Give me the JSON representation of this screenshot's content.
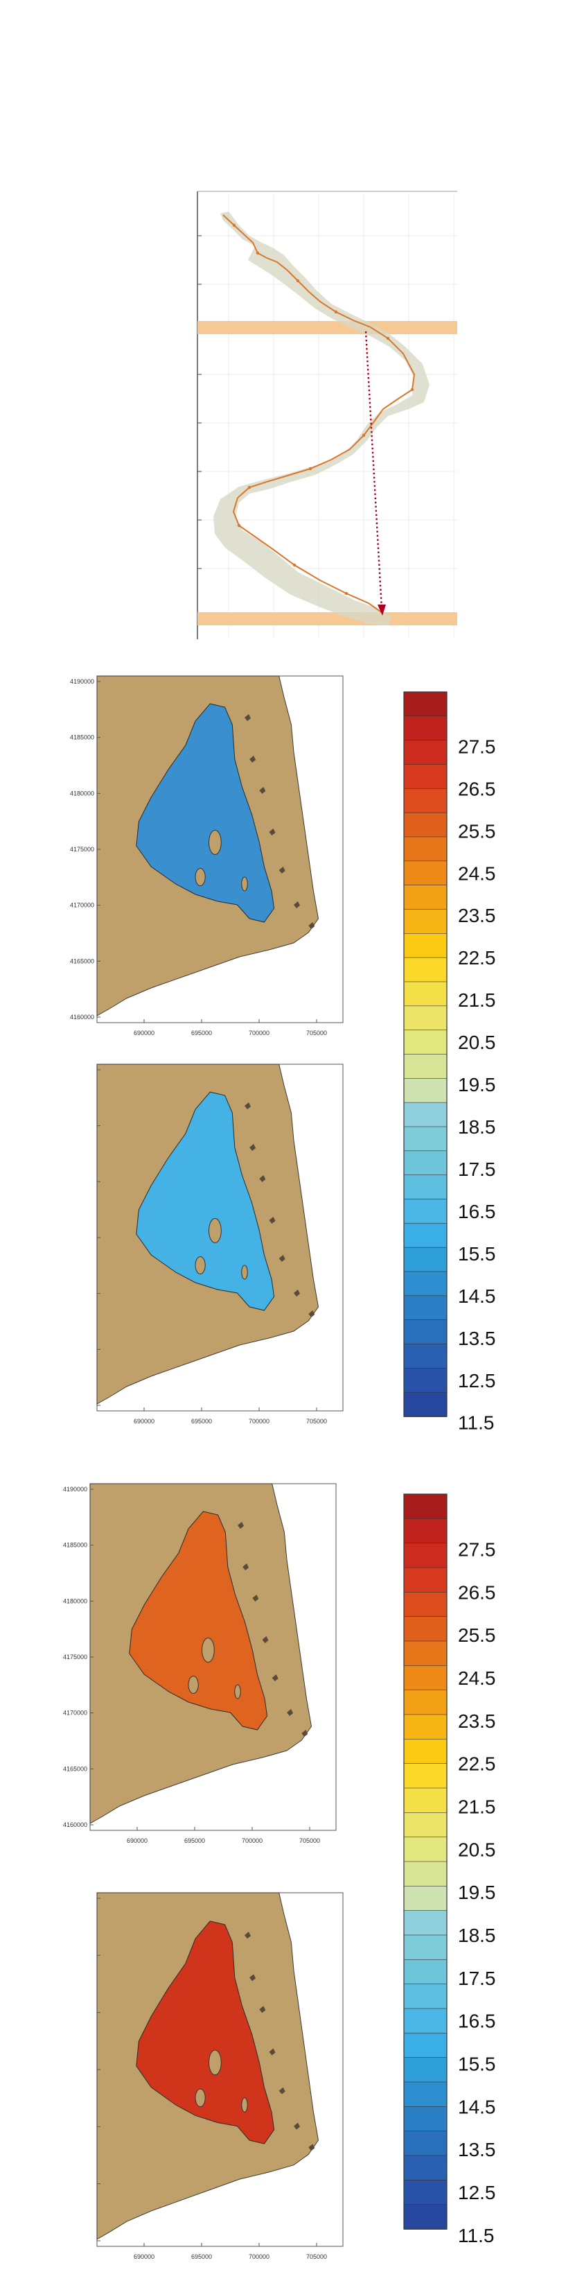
{
  "top_panel": {
    "band_color": "#f6c994",
    "curve_color": "#d9772b",
    "envelope_color": "#d8d8c4",
    "arrow_color": "#b0001e"
  },
  "maps": {
    "y_ticks": [
      "4190000",
      "4185000",
      "4180000",
      "4175000",
      "4170000",
      "4165000",
      "4160000"
    ],
    "x_ticks": [
      "690000",
      "695000",
      "700000",
      "705000"
    ],
    "land_color": "#bfa06a",
    "panels": [
      {
        "fill": "#3a8fcf",
        "value": 15.0,
        "show_y_ticks": true
      },
      {
        "fill": "#45b2e6",
        "value": 15.5,
        "show_y_ticks": false
      },
      {
        "fill": "#df6420",
        "value": 24.5,
        "show_y_ticks": true
      },
      {
        "fill": "#d0351c",
        "value": 26.5,
        "show_y_ticks": false
      }
    ]
  },
  "colorbar": {
    "labels": [
      "27.5",
      "26.5",
      "25.5",
      "24.5",
      "23.5",
      "22.5",
      "21.5",
      "20.5",
      "19.5",
      "18.5",
      "17.5",
      "16.5",
      "15.5",
      "14.5",
      "13.5",
      "12.5",
      "11.5"
    ],
    "colors": [
      "#a81b1b",
      "#c0221d",
      "#cc2b1e",
      "#d6391d",
      "#dc4c1c",
      "#e05f1b",
      "#e8761a",
      "#ee8b18",
      "#f3a117",
      "#f7b615",
      "#fbcb14",
      "#fbd92a",
      "#f4e14a",
      "#ece56a",
      "#e3e780",
      "#d8e596",
      "#cfe3b2",
      "#8fd0dc",
      "#7ecbda",
      "#6ec5d9",
      "#5cbfe0",
      "#4ab7e6",
      "#3aaee6",
      "#2f9fd9",
      "#2d8fcf",
      "#2b7fc5",
      "#2a6fbb",
      "#2960b2",
      "#2852a8",
      "#27479f"
    ]
  }
}
